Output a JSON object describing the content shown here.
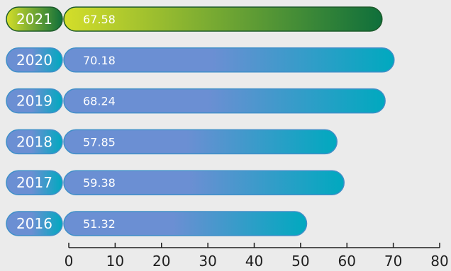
{
  "chart_data": {
    "type": "bar",
    "orientation": "horizontal",
    "categories": [
      "2021",
      "2020",
      "2019",
      "2018",
      "2017",
      "2016"
    ],
    "values": [
      67.58,
      70.18,
      68.24,
      57.85,
      59.38,
      51.32
    ],
    "value_labels": [
      "67.58",
      "70.18",
      "68.24",
      "57.85",
      "59.38",
      "51.32"
    ],
    "highlight_category": "2021",
    "xlim": [
      0,
      80
    ],
    "xticks": [
      "0",
      "10",
      "20",
      "30",
      "40",
      "50",
      "60",
      "70",
      "80"
    ],
    "title": "",
    "xlabel": "",
    "ylabel": "",
    "grid": false,
    "colors": {
      "background": "#ebebeb",
      "bar_start": "#6b8fd3",
      "bar_end": "#00a9bf",
      "bar_stroke": "#3f8fc8",
      "highlight_start": "#d4de2a",
      "highlight_end": "#0f6f3b",
      "highlight_stroke": "#1d5a2a",
      "axis": "#1f1f1f"
    }
  }
}
